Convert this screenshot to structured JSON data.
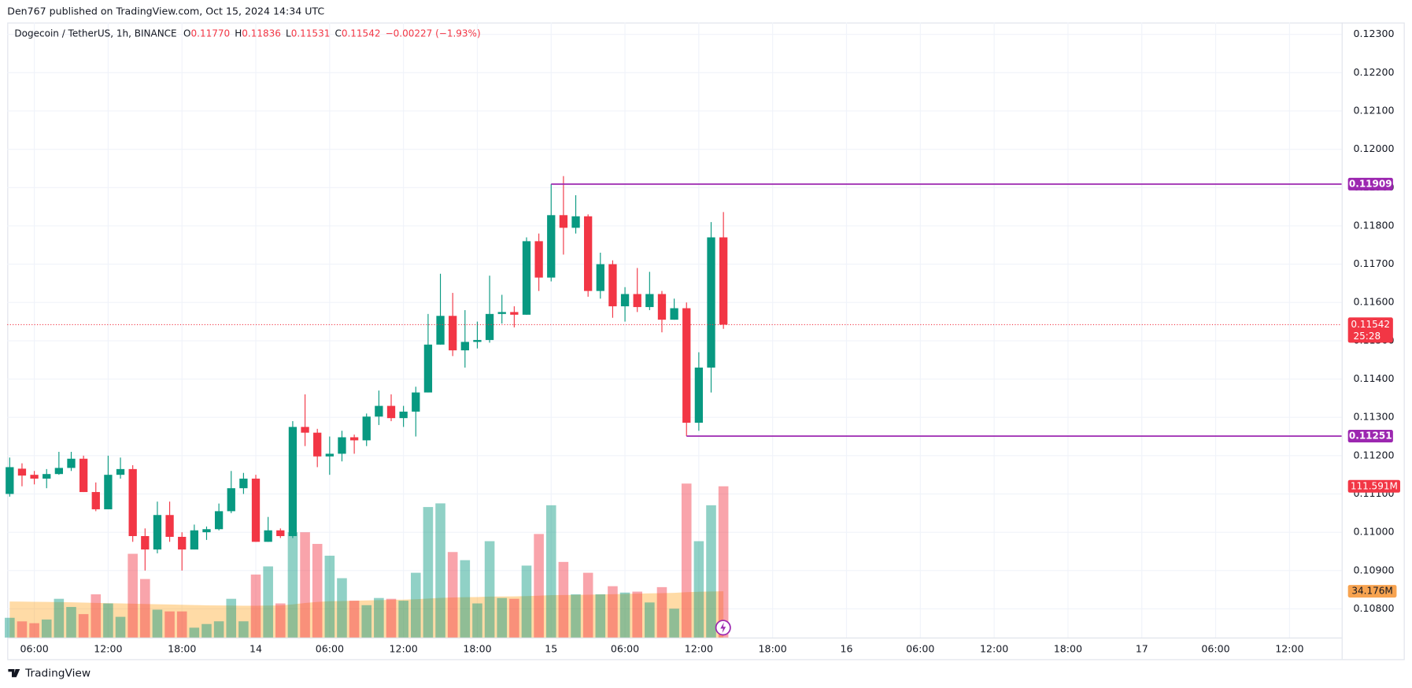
{
  "chart_data": {
    "type": "candlestick",
    "publisher": "Den767 published on TradingView.com, Oct 15, 2024 14:34 UTC",
    "symbol": "Dogecoin / TetherUS, 1h, BINANCE",
    "legend": [
      {
        "label": "O",
        "value": "0.11770"
      },
      {
        "label": "H",
        "value": "0.11836"
      },
      {
        "label": "L",
        "value": "0.11531"
      },
      {
        "label": "C",
        "value": "0.11542"
      }
    ],
    "change": "−0.00227 (−1.93%)",
    "brand": "TradingView",
    "up_color": "#089981",
    "down_color": "#f23645",
    "volume_up_color": "rgba(8,153,129,0.45)",
    "volume_down_color": "rgba(242,54,69,0.45)",
    "volume_ma_color": "rgba(255,152,0,0.35)",
    "level_color": "#9c27b0",
    "grid": true,
    "x": [
      4,
      5,
      6,
      7,
      8,
      9,
      10,
      11,
      12,
      13,
      14,
      15,
      16,
      17,
      18,
      19,
      20,
      21,
      22,
      23,
      24,
      25,
      26,
      27,
      28,
      29,
      30,
      31,
      32,
      33,
      34,
      35,
      36,
      37,
      38,
      39,
      40,
      41,
      42,
      43,
      44,
      45,
      46,
      47,
      48,
      49,
      50,
      51,
      52,
      53,
      54,
      55,
      56,
      57,
      58,
      59,
      60,
      61,
      62
    ],
    "open": [
      0.111,
      0.11166,
      0.1115,
      0.1114,
      0.11152,
      0.11168,
      0.11192,
      0.11105,
      0.1106,
      0.1115,
      0.11165,
      0.1099,
      0.10955,
      0.11045,
      0.10988,
      0.10955,
      0.11,
      0.11008,
      0.11055,
      0.11115,
      0.1114,
      0.10975,
      0.11005,
      0.1099,
      0.11275,
      0.1126,
      0.11198,
      0.11205,
      0.11248,
      0.1124,
      0.11302,
      0.1133,
      0.11298,
      0.11315,
      0.11365,
      0.1149,
      0.11565,
      0.11475,
      0.11497,
      0.11502,
      0.1157,
      0.11575,
      0.11568,
      0.1176,
      0.11665,
      0.11828,
      0.11795,
      0.11825,
      0.1163,
      0.117,
      0.1159,
      0.11622,
      0.11588,
      0.11622,
      0.11555,
      0.11585,
      0.11286,
      0.1143,
      0.1177
    ],
    "high": [
      0.11195,
      0.1118,
      0.1116,
      0.11165,
      0.1121,
      0.1121,
      0.112,
      0.1113,
      0.112,
      0.11195,
      0.11175,
      0.1101,
      0.1108,
      0.1108,
      0.11,
      0.1102,
      0.11015,
      0.11075,
      0.1116,
      0.11155,
      0.1115,
      0.1104,
      0.1101,
      0.1129,
      0.1136,
      0.1127,
      0.1125,
      0.11265,
      0.11255,
      0.1131,
      0.1137,
      0.1136,
      0.1133,
      0.1138,
      0.1157,
      0.11675,
      0.11625,
      0.1158,
      0.1155,
      0.1167,
      0.1162,
      0.1159,
      0.1177,
      0.1178,
      0.11909,
      0.1193,
      0.1188,
      0.1183,
      0.1173,
      0.1171,
      0.1164,
      0.1169,
      0.1168,
      0.1163,
      0.1161,
      0.116,
      0.1147,
      0.1181,
      0.11836
    ],
    "low": [
      0.11093,
      0.1112,
      0.11125,
      0.11115,
      0.1115,
      0.1116,
      0.11105,
      0.11055,
      0.1106,
      0.1114,
      0.10975,
      0.109,
      0.10945,
      0.10975,
      0.109,
      0.10955,
      0.1098,
      0.11005,
      0.1105,
      0.111,
      0.10975,
      0.10975,
      0.10985,
      0.10985,
      0.11225,
      0.1117,
      0.1115,
      0.11185,
      0.11205,
      0.11225,
      0.1128,
      0.1129,
      0.11275,
      0.1125,
      0.11365,
      0.1149,
      0.1146,
      0.1143,
      0.1148,
      0.11495,
      0.11545,
      0.11535,
      0.11568,
      0.1163,
      0.11655,
      0.11725,
      0.1178,
      0.11615,
      0.1161,
      0.1156,
      0.1155,
      0.11575,
      0.1158,
      0.11522,
      0.11555,
      0.11251,
      0.11265,
      0.11365,
      0.11531
    ],
    "close": [
      0.1117,
      0.11148,
      0.1114,
      0.11152,
      0.11168,
      0.11192,
      0.11105,
      0.1106,
      0.1115,
      0.11165,
      0.1099,
      0.10955,
      0.11045,
      0.10988,
      0.10955,
      0.11005,
      0.11008,
      0.11055,
      0.11115,
      0.1114,
      0.10975,
      0.11005,
      0.1099,
      0.11275,
      0.1126,
      0.11198,
      0.11205,
      0.11248,
      0.1124,
      0.11302,
      0.1133,
      0.11298,
      0.11315,
      0.11365,
      0.1149,
      0.11565,
      0.11475,
      0.11497,
      0.11502,
      0.1157,
      0.11575,
      0.11568,
      0.1176,
      0.11665,
      0.11828,
      0.11795,
      0.11825,
      0.1163,
      0.117,
      0.1159,
      0.11622,
      0.11588,
      0.11622,
      0.11555,
      0.11585,
      0.11286,
      0.1143,
      0.1177,
      0.11542
    ],
    "volume": [
      14.6,
      11.96,
      10.6,
      13.3,
      28.6,
      22.6,
      17.3,
      31.9,
      25.2,
      15.3,
      61.8,
      43.2,
      20.6,
      19.3,
      19.3,
      7.3,
      10.0,
      12.0,
      28.6,
      12.0,
      46.5,
      52.5,
      25.2,
      77.7,
      77.7,
      69.1,
      60.4,
      43.8,
      27.2,
      23.9,
      29.2,
      28.6,
      27.2,
      47.8,
      96.3,
      99.0,
      63.1,
      57.1,
      25.2,
      71.1,
      29.2,
      28.6,
      53.1,
      76.4,
      97.6,
      55.8,
      31.9,
      47.8,
      31.9,
      37.9,
      33.2,
      33.9,
      25.9,
      37.2,
      21.3,
      113.6,
      71.1,
      97.6,
      111.591
    ],
    "volume_ma": [
      26.6,
      26.5,
      26.4,
      26.3,
      26.2,
      26.0,
      25.8,
      25.6,
      25.4,
      25.2,
      25.0,
      24.8,
      24.6,
      24.4,
      24.2,
      24.0,
      23.8,
      23.7,
      23.6,
      23.5,
      23.5,
      23.6,
      23.7,
      24.5,
      25.5,
      26.3,
      26.8,
      27.0,
      27.2,
      27.4,
      27.6,
      27.8,
      28.0,
      28.3,
      28.8,
      29.3,
      29.6,
      29.8,
      29.9,
      30.2,
      30.3,
      30.4,
      30.6,
      30.9,
      31.3,
      31.4,
      31.5,
      31.6,
      31.8,
      32.0,
      32.2,
      32.4,
      32.6,
      32.8,
      33.0,
      33.5,
      33.8,
      34.0,
      34.176
    ],
    "volume_label": "111.591M",
    "volume_ma_label": "34.176M",
    "last_price": {
      "value": 0.11542,
      "label": "0.11542",
      "countdown": "25:28"
    },
    "levels": [
      {
        "value": 0.11909,
        "label": "0.11909",
        "start": 48
      },
      {
        "value": 0.11251,
        "label": "0.11251",
        "start": 59
      }
    ],
    "xlim": [
      3.805,
      112.24
    ],
    "xticks": [
      {
        "value": 6,
        "label": "06:00"
      },
      {
        "value": 12,
        "label": "12:00"
      },
      {
        "value": 18,
        "label": "18:00"
      },
      {
        "value": 24,
        "label": "14"
      },
      {
        "value": 30,
        "label": "06:00"
      },
      {
        "value": 36,
        "label": "12:00"
      },
      {
        "value": 42,
        "label": "18:00"
      },
      {
        "value": 48,
        "label": "15"
      },
      {
        "value": 54,
        "label": "06:00"
      },
      {
        "value": 60,
        "label": "12:00"
      },
      {
        "value": 66,
        "label": "18:00"
      },
      {
        "value": 72,
        "label": "16"
      },
      {
        "value": 78,
        "label": "06:00"
      },
      {
        "value": 84,
        "label": "12:00"
      },
      {
        "value": 90,
        "label": "18:00"
      },
      {
        "value": 96,
        "label": "17"
      },
      {
        "value": 102,
        "label": "06:00"
      },
      {
        "value": 108,
        "label": "12:00"
      }
    ],
    "ylim": [
      0.10725,
      0.12331
    ],
    "yticks": [
      {
        "value": 0.123,
        "label": "0.12300"
      },
      {
        "value": 0.122,
        "label": "0.12200"
      },
      {
        "value": 0.121,
        "label": "0.12100"
      },
      {
        "value": 0.12,
        "label": "0.12000"
      },
      {
        "value": 0.119,
        "label": "0.11900"
      },
      {
        "value": 0.118,
        "label": "0.11800"
      },
      {
        "value": 0.117,
        "label": "0.11700"
      },
      {
        "value": 0.116,
        "label": "0.11600"
      },
      {
        "value": 0.115,
        "label": "0.11500"
      },
      {
        "value": 0.114,
        "label": "0.11400"
      },
      {
        "value": 0.113,
        "label": "0.11300"
      },
      {
        "value": 0.112,
        "label": "0.11200"
      },
      {
        "value": 0.111,
        "label": "0.11100"
      },
      {
        "value": 0.11,
        "label": "0.11000"
      },
      {
        "value": 0.109,
        "label": "0.10900"
      },
      {
        "value": 0.108,
        "label": "0.10800"
      }
    ],
    "y2lim": [
      0,
      453.7
    ]
  }
}
